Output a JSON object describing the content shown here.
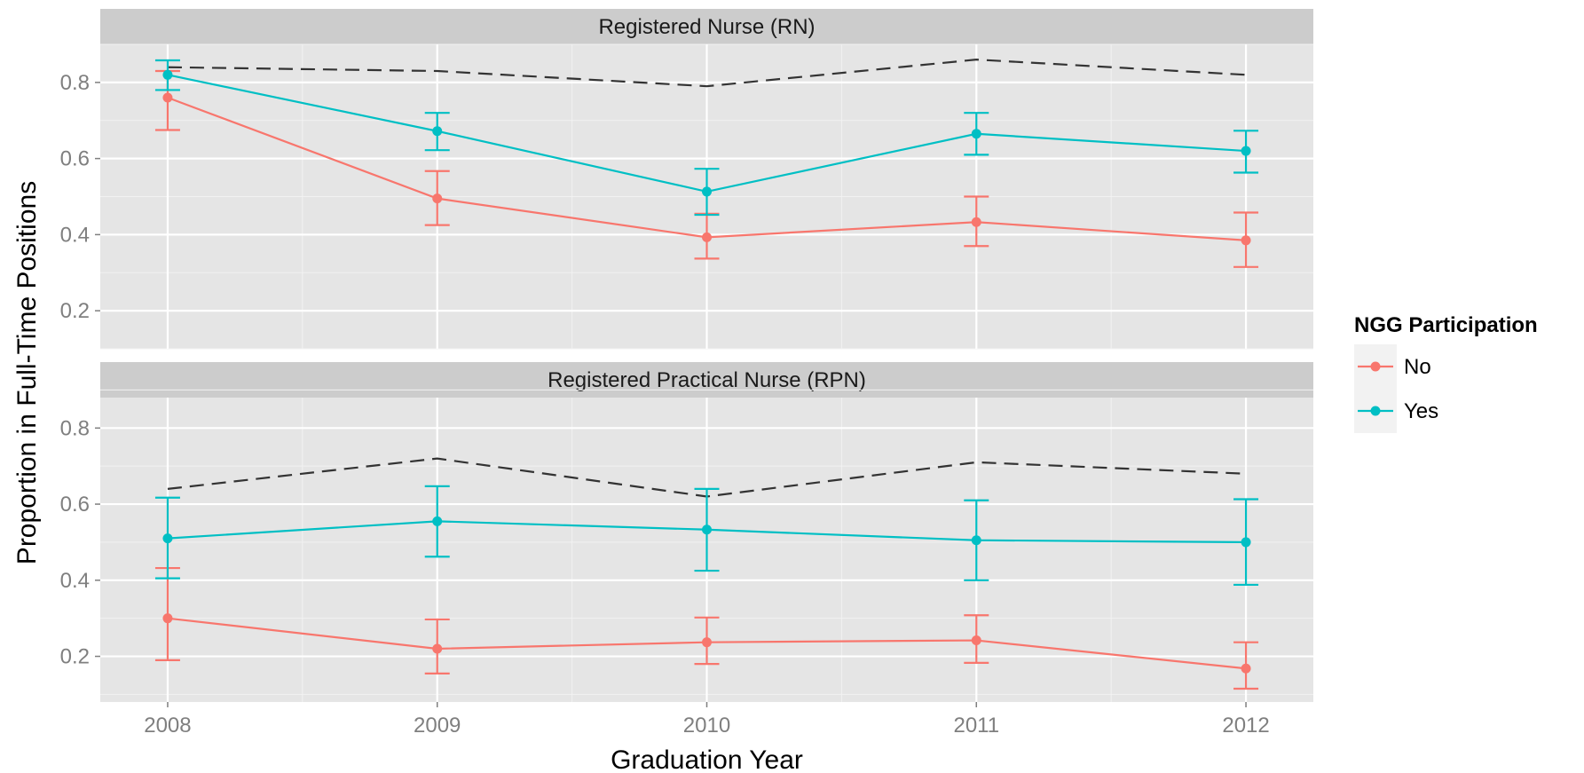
{
  "chart_data": {
    "type": "line",
    "ylabel": "Proportion in Full-Time Positions",
    "xlabel": "Graduation Year",
    "x": [
      "2008",
      "2009",
      "2010",
      "2011",
      "2012"
    ],
    "xlim": [
      2007.75,
      2012.25
    ],
    "y_ticks": [
      "0.2",
      "0.4",
      "0.6",
      "0.8"
    ],
    "grid": true,
    "legend": {
      "title": "NGG Participation",
      "position": "right",
      "entries": [
        "No",
        "Yes"
      ]
    },
    "colors": {
      "No": "#F8766D",
      "Yes": "#00BFC4",
      "reference": "#333333",
      "panel_bg": "#E5E5E5",
      "strip_bg": "#CCCCCC"
    },
    "panels": [
      {
        "title": "Registered Nurse (RN)",
        "ylim": [
          0.1,
          0.9
        ],
        "series": [
          {
            "name": "No",
            "values": [
              0.76,
              0.495,
              0.393,
              0.433,
              0.385
            ],
            "lower": [
              0.675,
              0.425,
              0.337,
              0.37,
              0.315
            ],
            "upper": [
              0.83,
              0.567,
              0.455,
              0.5,
              0.458
            ]
          },
          {
            "name": "Yes",
            "values": [
              0.82,
              0.672,
              0.513,
              0.665,
              0.62
            ],
            "lower": [
              0.78,
              0.622,
              0.452,
              0.61,
              0.563
            ],
            "upper": [
              0.858,
              0.72,
              0.573,
              0.72,
              0.673
            ]
          }
        ],
        "reference": [
          0.84,
          0.83,
          0.79,
          0.86,
          0.82
        ]
      },
      {
        "title": "Registered Practical Nurse (RPN)",
        "ylim": [
          0.08,
          0.88
        ],
        "series": [
          {
            "name": "No",
            "values": [
              0.3,
              0.22,
              0.237,
              0.242,
              0.168
            ],
            "lower": [
              0.19,
              0.155,
              0.18,
              0.183,
              0.115
            ],
            "upper": [
              0.432,
              0.297,
              0.302,
              0.308,
              0.237
            ]
          },
          {
            "name": "Yes",
            "values": [
              0.51,
              0.555,
              0.533,
              0.505,
              0.5
            ],
            "lower": [
              0.405,
              0.462,
              0.425,
              0.4,
              0.388
            ],
            "upper": [
              0.617,
              0.647,
              0.64,
              0.61,
              0.613
            ]
          }
        ],
        "reference": [
          0.64,
          0.72,
          0.62,
          0.71,
          0.68
        ]
      }
    ]
  }
}
